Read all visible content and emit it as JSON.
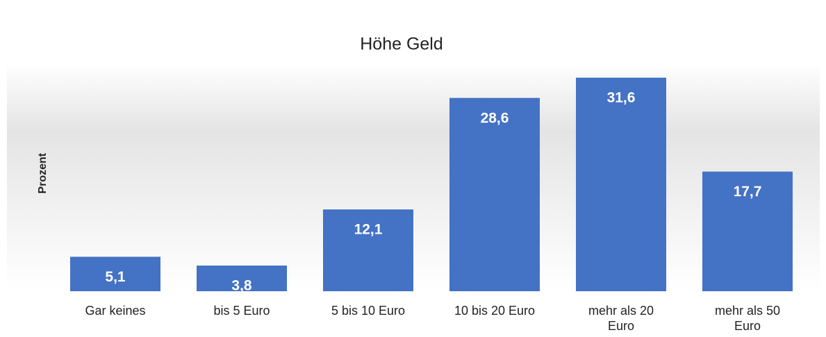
{
  "chart_data": {
    "type": "bar",
    "title": "Höhe Geld",
    "y_label": "Prozent",
    "categories": [
      "Gar keines",
      "bis 5 Euro",
      "5 bis 10 Euro",
      "10 bis 20 Euro",
      "mehr als 20 Euro",
      "mehr als 50 Euro"
    ],
    "values": [
      5.1,
      3.8,
      12.1,
      28.6,
      31.6,
      17.7
    ],
    "value_labels": [
      "5,1",
      "3,8",
      "12,1",
      "28,6",
      "31,6",
      "17,7"
    ],
    "color": "#4472c4"
  }
}
